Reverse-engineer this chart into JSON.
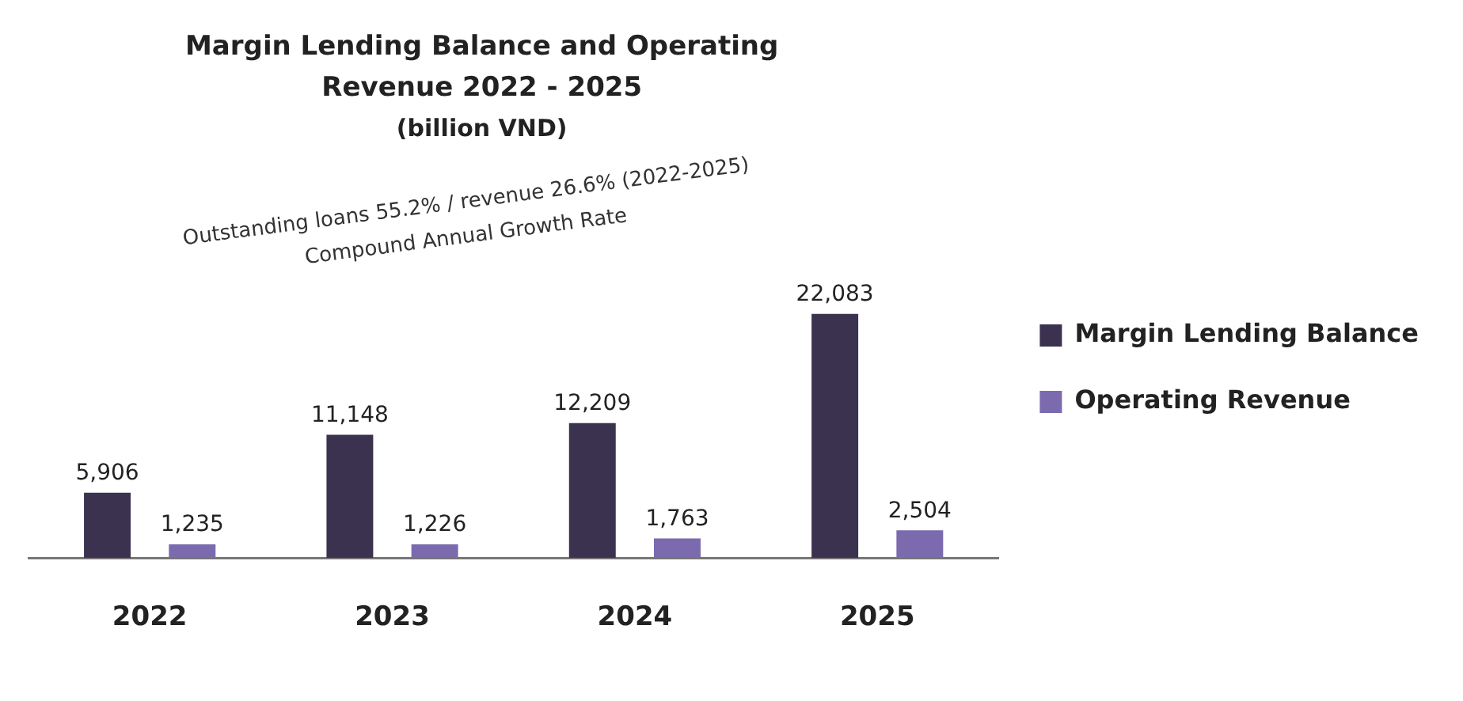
{
  "chart_data": {
    "type": "bar",
    "title": "Margin Lending Balance and Operating Revenue 2022 - 2025",
    "subtitle": "(billion VND)",
    "categories": [
      "2022",
      "2023",
      "2024",
      "2025"
    ],
    "series": [
      {
        "name": "Margin Lending Balance",
        "color": "#3b3250",
        "values": [
          5906,
          11148,
          12209,
          22083
        ],
        "value_labels": [
          "5,906",
          "11,148",
          "12,209",
          "22,083"
        ]
      },
      {
        "name": "Operating Revenue",
        "color": "#7b6aae",
        "values": [
          1235,
          1226,
          1763,
          2504
        ],
        "value_labels": [
          "1,235",
          "1,226",
          "1,763",
          "2,504"
        ]
      }
    ],
    "annotations": [
      "Outstanding loans 55.2% / revenue 26.6% (2022-2025)",
      "Compound Annual Growth Rate"
    ],
    "grid": false,
    "legend": "right"
  }
}
